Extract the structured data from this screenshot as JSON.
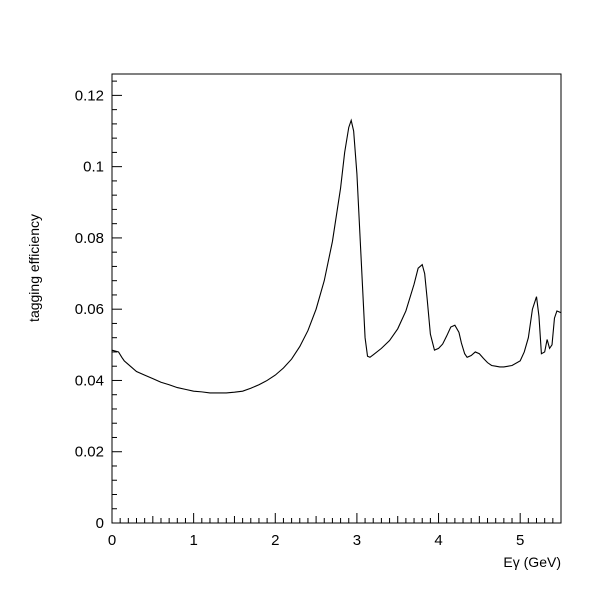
{
  "chart_data": {
    "type": "line",
    "xlabel": "Eγ (GeV)",
    "ylabel": "tagging efficiency",
    "xlim": [
      0,
      5.5
    ],
    "ylim": [
      0,
      0.126
    ],
    "xticks": [
      "0",
      "1",
      "2",
      "3",
      "4",
      "5"
    ],
    "yticks": [
      "0",
      "0.02",
      "0.04",
      "0.06",
      "0.08",
      "0.1",
      "0.12"
    ],
    "grid": false,
    "series": [
      {
        "x": [
          0.0,
          0.08,
          0.12,
          0.15,
          0.2,
          0.3,
          0.4,
          0.5,
          0.6,
          0.7,
          0.8,
          0.9,
          1.0,
          1.1,
          1.2,
          1.3,
          1.4,
          1.5,
          1.6,
          1.7,
          1.8,
          1.9,
          2.0,
          2.1,
          2.2,
          2.3,
          2.4,
          2.5,
          2.6,
          2.7,
          2.8,
          2.85,
          2.9,
          2.93,
          2.96,
          3.0,
          3.05,
          3.1,
          3.13,
          3.16,
          3.2,
          3.3,
          3.4,
          3.5,
          3.6,
          3.7,
          3.75,
          3.8,
          3.83,
          3.86,
          3.9,
          3.95,
          4.0,
          4.05,
          4.1,
          4.15,
          4.2,
          4.25,
          4.28,
          4.32,
          4.35,
          4.4,
          4.45,
          4.5,
          4.55,
          4.6,
          4.65,
          4.7,
          4.75,
          4.8,
          4.9,
          5.0,
          5.05,
          5.1,
          5.15,
          5.2,
          5.23,
          5.26,
          5.3,
          5.33,
          5.36,
          5.39,
          5.42,
          5.45,
          5.48,
          5.5
        ],
        "y": [
          0.0485,
          0.048,
          0.0465,
          0.0455,
          0.0445,
          0.0425,
          0.0415,
          0.0405,
          0.0395,
          0.0388,
          0.038,
          0.0375,
          0.037,
          0.0368,
          0.0365,
          0.0365,
          0.0365,
          0.0367,
          0.037,
          0.0378,
          0.0388,
          0.04,
          0.0415,
          0.0435,
          0.046,
          0.0495,
          0.054,
          0.06,
          0.068,
          0.079,
          0.094,
          0.104,
          0.111,
          0.113,
          0.11,
          0.098,
          0.075,
          0.052,
          0.0468,
          0.0465,
          0.0472,
          0.049,
          0.0512,
          0.0545,
          0.0595,
          0.067,
          0.0715,
          0.0725,
          0.07,
          0.063,
          0.053,
          0.0485,
          0.049,
          0.0502,
          0.0525,
          0.055,
          0.0555,
          0.0535,
          0.0505,
          0.0475,
          0.0465,
          0.047,
          0.048,
          0.0475,
          0.0462,
          0.045,
          0.0442,
          0.044,
          0.0438,
          0.0438,
          0.0442,
          0.0455,
          0.048,
          0.052,
          0.06,
          0.0635,
          0.058,
          0.0475,
          0.048,
          0.0515,
          0.049,
          0.05,
          0.0575,
          0.0595,
          0.0592,
          0.059
        ]
      }
    ]
  }
}
